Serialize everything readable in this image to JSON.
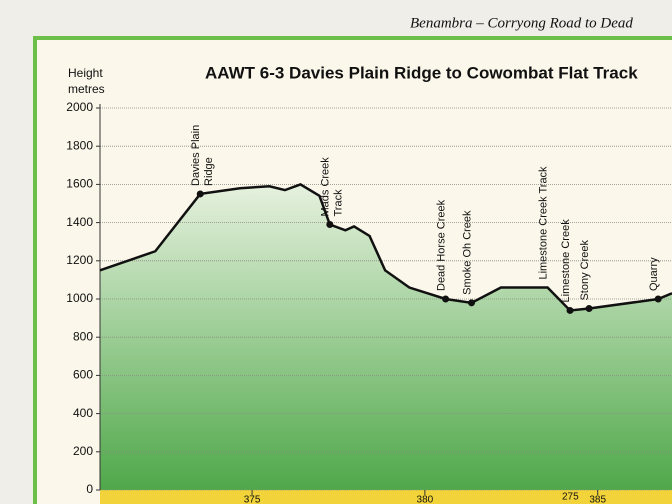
{
  "page_header": "Benambra – Corryong Road to Dead",
  "chart_data": {
    "type": "area",
    "title": "AAWT 6-3  Davies Plain Ridge to Cowombat Flat Track",
    "y_label": [
      "Height",
      "metres"
    ],
    "x": [
      370.6,
      372.2,
      373.5,
      374.65,
      375.5,
      375.95,
      376.4,
      376.95,
      377.25,
      377.7,
      377.95,
      378.4,
      378.85,
      379.55,
      380.6,
      381.35,
      382.2,
      383.55,
      384.2,
      384.75,
      386.75,
      387.15
    ],
    "values": [
      1150,
      1250,
      1550,
      1580,
      1590,
      1570,
      1600,
      1540,
      1390,
      1360,
      1380,
      1330,
      1150,
      1060,
      1000,
      980,
      1060,
      1060,
      940,
      950,
      1000,
      1030
    ],
    "color": "#111111",
    "fill": "#4fa84a",
    "xlim": [
      370.6,
      387.15
    ],
    "xticks": [
      375,
      380,
      385
    ],
    "extra_x_labels": [
      "275"
    ],
    "ylim": [
      0,
      2000
    ],
    "yticks": [
      0,
      200,
      400,
      600,
      800,
      1000,
      1200,
      1400,
      1600,
      1800,
      2000
    ],
    "grid": true,
    "waypoints": [
      {
        "lines": [
          "Davies Plain",
          "Ridge"
        ],
        "x": 373.5,
        "y": 1550,
        "dot": true
      },
      {
        "lines": [
          "Mads Creek",
          "Track"
        ],
        "x": 377.25,
        "y": 1390,
        "dot": true
      },
      {
        "lines": [
          "Dead Horse Creek"
        ],
        "x": 380.6,
        "y": 1000,
        "dot": true
      },
      {
        "lines": [
          "Smoke Oh Creek"
        ],
        "x": 381.35,
        "y": 980,
        "dot": true
      },
      {
        "lines": [
          "Limestone Creek Track"
        ],
        "x": 383.55,
        "y": 1060,
        "dot": false
      },
      {
        "lines": [
          "Limestone Creek"
        ],
        "x": 384.2,
        "y": 940,
        "dot": true
      },
      {
        "lines": [
          "Stony Creek"
        ],
        "x": 384.75,
        "y": 950,
        "dot": true
      },
      {
        "lines": [
          "Quarry"
        ],
        "x": 386.75,
        "y": 1000,
        "dot": true
      }
    ]
  }
}
